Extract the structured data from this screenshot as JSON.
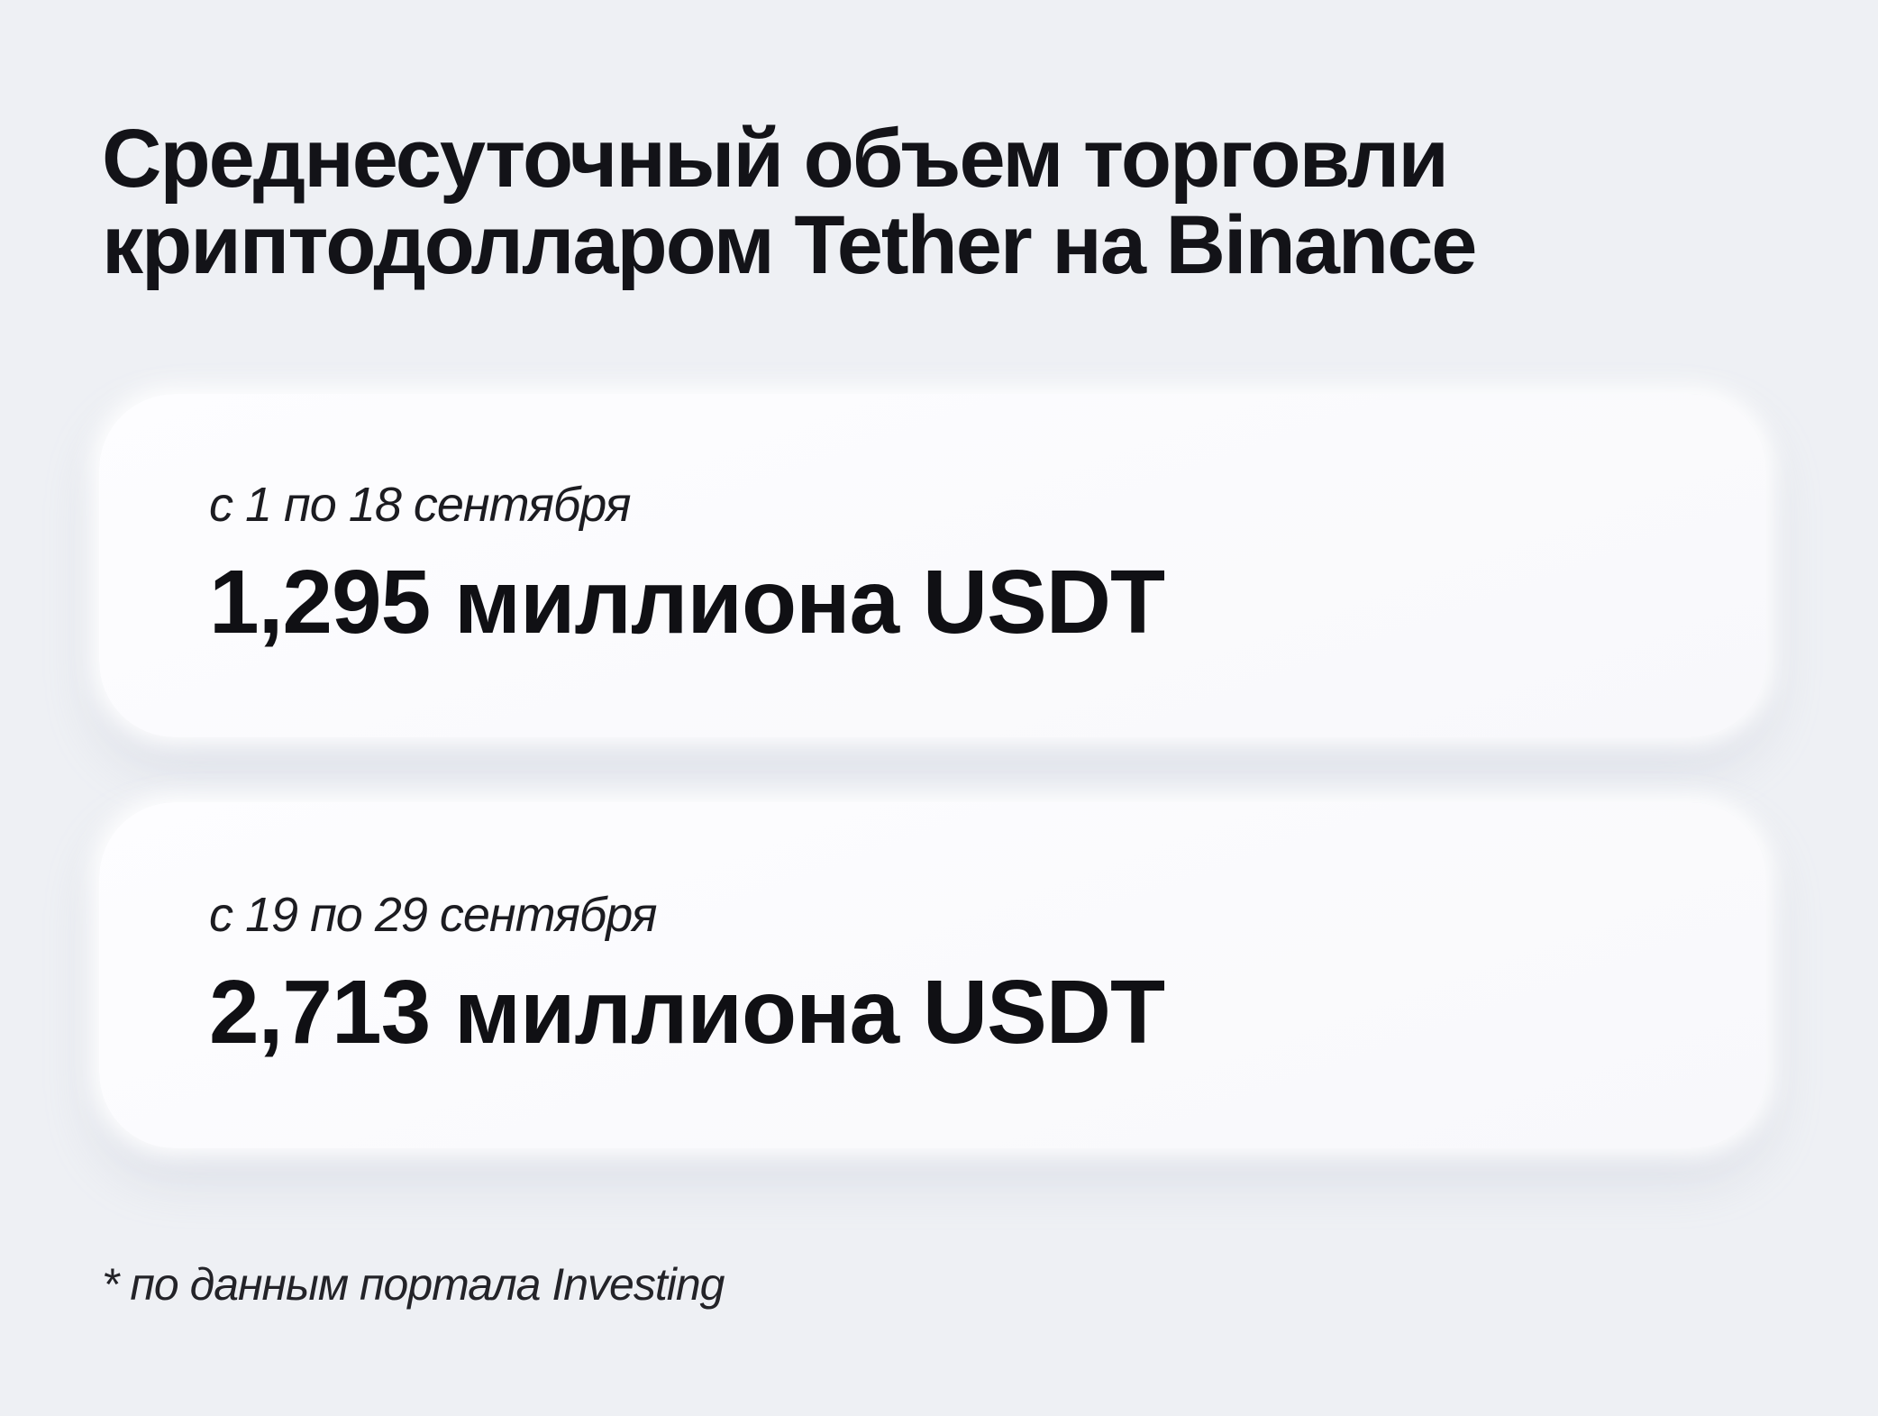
{
  "page": {
    "background_color": "#eef0f4",
    "card_background": "#fbfbfd",
    "text_color": "#131318"
  },
  "header": {
    "title": "Среднесуточный объем торговли криптодолларом Tether на Binance"
  },
  "stats": [
    {
      "period": "с 1 по 18 сентября",
      "value": "1,295 миллиона USDT"
    },
    {
      "period": "с 19 по 29 сентября",
      "value": "2,713 миллиона USDT"
    }
  ],
  "footer": {
    "source_note": "* по данным портала Investing"
  },
  "chart_data": {
    "type": "table",
    "title": "Среднесуточный объем торговли криптодолларом Tether на Binance",
    "categories": [
      "с 1 по 18 сентября",
      "с 19 по 29 сентября"
    ],
    "values": [
      1.295,
      2.713
    ],
    "values_display": [
      "1,295 миллиона USDT",
      "2,713 миллиона USDT"
    ],
    "unit": "миллиона USDT",
    "annotations": [
      "* по данным портала Investing"
    ]
  }
}
